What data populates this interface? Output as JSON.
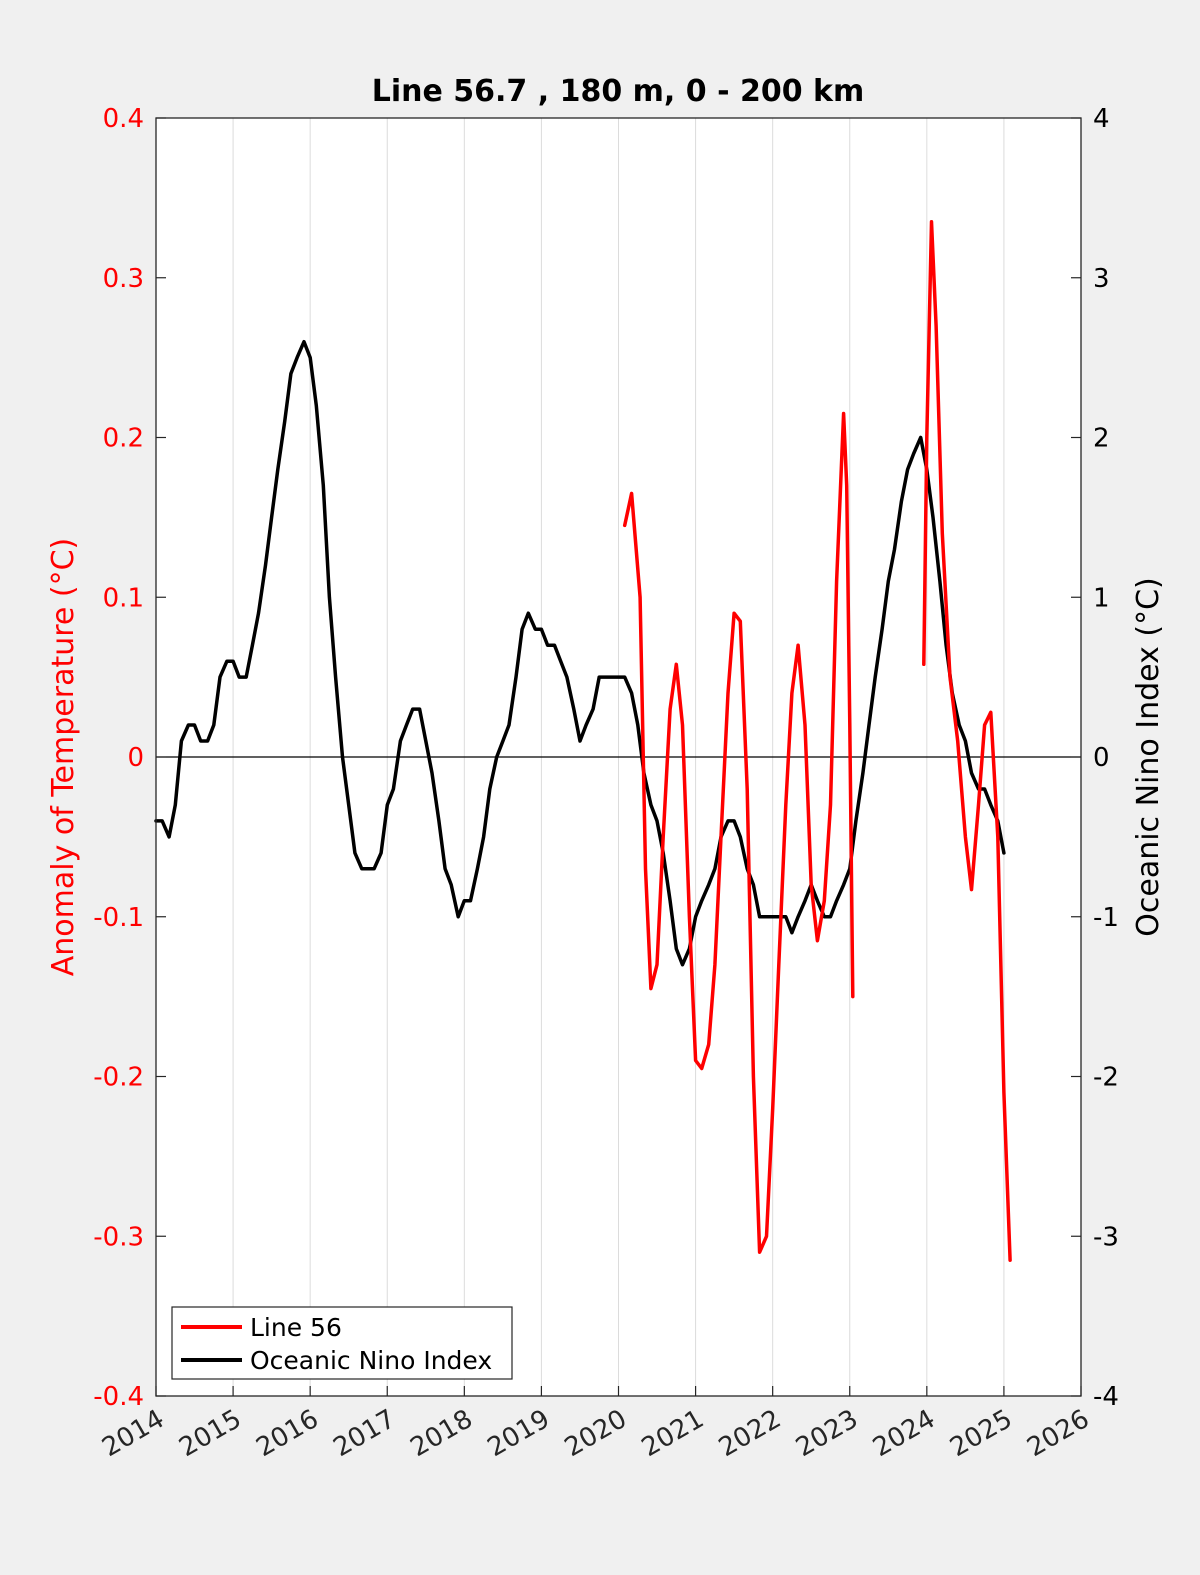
{
  "chart_data": {
    "type": "line",
    "title": "Line 56.7 , 180 m, 0 - 200 km",
    "xlabel": "",
    "ylabel_left": "Anomaly of Temperature (°C)",
    "ylabel_right": "Oceanic Nino Index (°C)",
    "xlim": [
      2014,
      2026
    ],
    "ylim_left": [
      -0.4,
      0.4
    ],
    "ylim_right": [
      -4,
      4
    ],
    "x_ticks": [
      "2014",
      "2015",
      "2016",
      "2017",
      "2018",
      "2019",
      "2020",
      "2021",
      "2022",
      "2023",
      "2024",
      "2025",
      "2026"
    ],
    "y_ticks_left": [
      "-0.4",
      "-0.3",
      "-0.2",
      "-0.1",
      "0",
      "0.1",
      "0.2",
      "0.3",
      "0.4"
    ],
    "y_ticks_right": [
      "-4",
      "-3",
      "-2",
      "-1",
      "0",
      "1",
      "2",
      "3",
      "4"
    ],
    "grid": "vertical",
    "legend_position": "bottom-left",
    "colors": {
      "left_axis": "#ff0000",
      "right_axis": "#000000",
      "line56": "#ff0000",
      "oni": "#000000"
    },
    "series": [
      {
        "name": "Line 56",
        "axis": "left",
        "segments": [
          [
            [
              2020.08,
              0.145
            ],
            [
              2020.17,
              0.165
            ],
            [
              2020.28,
              0.1
            ],
            [
              2020.35,
              -0.07
            ],
            [
              2020.42,
              -0.145
            ],
            [
              2020.5,
              -0.13
            ],
            [
              2020.58,
              -0.05
            ],
            [
              2020.67,
              0.03
            ],
            [
              2020.75,
              0.058
            ],
            [
              2020.83,
              0.02
            ],
            [
              2020.92,
              -0.1
            ],
            [
              2021.0,
              -0.19
            ],
            [
              2021.08,
              -0.195
            ],
            [
              2021.17,
              -0.18
            ],
            [
              2021.25,
              -0.13
            ],
            [
              2021.33,
              -0.05
            ],
            [
              2021.42,
              0.04
            ],
            [
              2021.5,
              0.09
            ],
            [
              2021.58,
              0.085
            ],
            [
              2021.67,
              -0.02
            ],
            [
              2021.75,
              -0.2
            ],
            [
              2021.83,
              -0.31
            ],
            [
              2021.92,
              -0.3
            ],
            [
              2022.0,
              -0.22
            ],
            [
              2022.08,
              -0.13
            ],
            [
              2022.17,
              -0.03
            ],
            [
              2022.25,
              0.04
            ],
            [
              2022.33,
              0.07
            ],
            [
              2022.42,
              0.02
            ],
            [
              2022.5,
              -0.08
            ],
            [
              2022.58,
              -0.115
            ],
            [
              2022.67,
              -0.09
            ],
            [
              2022.75,
              -0.03
            ],
            [
              2022.83,
              0.11
            ],
            [
              2022.92,
              0.215
            ],
            [
              2022.96,
              0.17
            ],
            [
              2023.0,
              0.02
            ],
            [
              2023.04,
              -0.15
            ]
          ],
          [
            [
              2023.96,
              0.058
            ],
            [
              2024.0,
              0.2
            ],
            [
              2024.06,
              0.335
            ],
            [
              2024.12,
              0.27
            ],
            [
              2024.2,
              0.14
            ],
            [
              2024.3,
              0.05
            ],
            [
              2024.4,
              0.01
            ],
            [
              2024.5,
              -0.05
            ],
            [
              2024.58,
              -0.083
            ],
            [
              2024.67,
              -0.03
            ],
            [
              2024.75,
              0.02
            ],
            [
              2024.83,
              0.028
            ],
            [
              2024.92,
              -0.05
            ],
            [
              2025.0,
              -0.21
            ],
            [
              2025.08,
              -0.315
            ]
          ]
        ]
      },
      {
        "name": "Oceanic Nino Index",
        "axis": "right",
        "points": [
          [
            2014.0,
            -0.4
          ],
          [
            2014.08,
            -0.4
          ],
          [
            2014.17,
            -0.5
          ],
          [
            2014.25,
            -0.3
          ],
          [
            2014.33,
            0.1
          ],
          [
            2014.42,
            0.2
          ],
          [
            2014.5,
            0.2
          ],
          [
            2014.58,
            0.1
          ],
          [
            2014.67,
            0.1
          ],
          [
            2014.75,
            0.2
          ],
          [
            2014.83,
            0.5
          ],
          [
            2014.92,
            0.6
          ],
          [
            2015.0,
            0.6
          ],
          [
            2015.08,
            0.5
          ],
          [
            2015.17,
            0.5
          ],
          [
            2015.25,
            0.7
          ],
          [
            2015.33,
            0.9
          ],
          [
            2015.42,
            1.2
          ],
          [
            2015.5,
            1.5
          ],
          [
            2015.58,
            1.8
          ],
          [
            2015.67,
            2.1
          ],
          [
            2015.75,
            2.4
          ],
          [
            2015.83,
            2.5
          ],
          [
            2015.92,
            2.6
          ],
          [
            2016.0,
            2.5
          ],
          [
            2016.08,
            2.2
          ],
          [
            2016.17,
            1.7
          ],
          [
            2016.25,
            1.0
          ],
          [
            2016.33,
            0.5
          ],
          [
            2016.42,
            0.0
          ],
          [
            2016.5,
            -0.3
          ],
          [
            2016.58,
            -0.6
          ],
          [
            2016.67,
            -0.7
          ],
          [
            2016.75,
            -0.7
          ],
          [
            2016.83,
            -0.7
          ],
          [
            2016.92,
            -0.6
          ],
          [
            2017.0,
            -0.3
          ],
          [
            2017.08,
            -0.2
          ],
          [
            2017.17,
            0.1
          ],
          [
            2017.25,
            0.2
          ],
          [
            2017.33,
            0.3
          ],
          [
            2017.42,
            0.3
          ],
          [
            2017.5,
            0.1
          ],
          [
            2017.58,
            -0.1
          ],
          [
            2017.67,
            -0.4
          ],
          [
            2017.75,
            -0.7
          ],
          [
            2017.83,
            -0.8
          ],
          [
            2017.92,
            -1.0
          ],
          [
            2018.0,
            -0.9
          ],
          [
            2018.08,
            -0.9
          ],
          [
            2018.17,
            -0.7
          ],
          [
            2018.25,
            -0.5
          ],
          [
            2018.33,
            -0.2
          ],
          [
            2018.42,
            0.0
          ],
          [
            2018.5,
            0.1
          ],
          [
            2018.58,
            0.2
          ],
          [
            2018.67,
            0.5
          ],
          [
            2018.75,
            0.8
          ],
          [
            2018.83,
            0.9
          ],
          [
            2018.92,
            0.8
          ],
          [
            2019.0,
            0.8
          ],
          [
            2019.08,
            0.7
          ],
          [
            2019.17,
            0.7
          ],
          [
            2019.25,
            0.6
          ],
          [
            2019.33,
            0.5
          ],
          [
            2019.42,
            0.3
          ],
          [
            2019.5,
            0.1
          ],
          [
            2019.58,
            0.2
          ],
          [
            2019.67,
            0.3
          ],
          [
            2019.75,
            0.5
          ],
          [
            2019.83,
            0.5
          ],
          [
            2019.92,
            0.5
          ],
          [
            2020.0,
            0.5
          ],
          [
            2020.08,
            0.5
          ],
          [
            2020.17,
            0.4
          ],
          [
            2020.25,
            0.2
          ],
          [
            2020.33,
            -0.1
          ],
          [
            2020.42,
            -0.3
          ],
          [
            2020.5,
            -0.4
          ],
          [
            2020.58,
            -0.6
          ],
          [
            2020.67,
            -0.9
          ],
          [
            2020.75,
            -1.2
          ],
          [
            2020.83,
            -1.3
          ],
          [
            2020.92,
            -1.2
          ],
          [
            2021.0,
            -1.0
          ],
          [
            2021.08,
            -0.9
          ],
          [
            2021.17,
            -0.8
          ],
          [
            2021.25,
            -0.7
          ],
          [
            2021.33,
            -0.5
          ],
          [
            2021.42,
            -0.4
          ],
          [
            2021.5,
            -0.4
          ],
          [
            2021.58,
            -0.5
          ],
          [
            2021.67,
            -0.7
          ],
          [
            2021.75,
            -0.8
          ],
          [
            2021.83,
            -1.0
          ],
          [
            2021.92,
            -1.0
          ],
          [
            2022.0,
            -1.0
          ],
          [
            2022.08,
            -1.0
          ],
          [
            2022.17,
            -1.0
          ],
          [
            2022.25,
            -1.1
          ],
          [
            2022.33,
            -1.0
          ],
          [
            2022.42,
            -0.9
          ],
          [
            2022.5,
            -0.8
          ],
          [
            2022.58,
            -0.9
          ],
          [
            2022.67,
            -1.0
          ],
          [
            2022.75,
            -1.0
          ],
          [
            2022.83,
            -0.9
          ],
          [
            2022.92,
            -0.8
          ],
          [
            2023.0,
            -0.7
          ],
          [
            2023.08,
            -0.4
          ],
          [
            2023.17,
            -0.1
          ],
          [
            2023.25,
            0.2
          ],
          [
            2023.33,
            0.5
          ],
          [
            2023.42,
            0.8
          ],
          [
            2023.5,
            1.1
          ],
          [
            2023.58,
            1.3
          ],
          [
            2023.67,
            1.6
          ],
          [
            2023.75,
            1.8
          ],
          [
            2023.83,
            1.9
          ],
          [
            2023.92,
            2.0
          ],
          [
            2024.0,
            1.8
          ],
          [
            2024.08,
            1.5
          ],
          [
            2024.17,
            1.1
          ],
          [
            2024.25,
            0.7
          ],
          [
            2024.33,
            0.4
          ],
          [
            2024.42,
            0.2
          ],
          [
            2024.5,
            0.1
          ],
          [
            2024.58,
            -0.1
          ],
          [
            2024.67,
            -0.2
          ],
          [
            2024.75,
            -0.2
          ],
          [
            2024.83,
            -0.3
          ],
          [
            2024.92,
            -0.4
          ],
          [
            2025.0,
            -0.6
          ]
        ]
      }
    ]
  }
}
